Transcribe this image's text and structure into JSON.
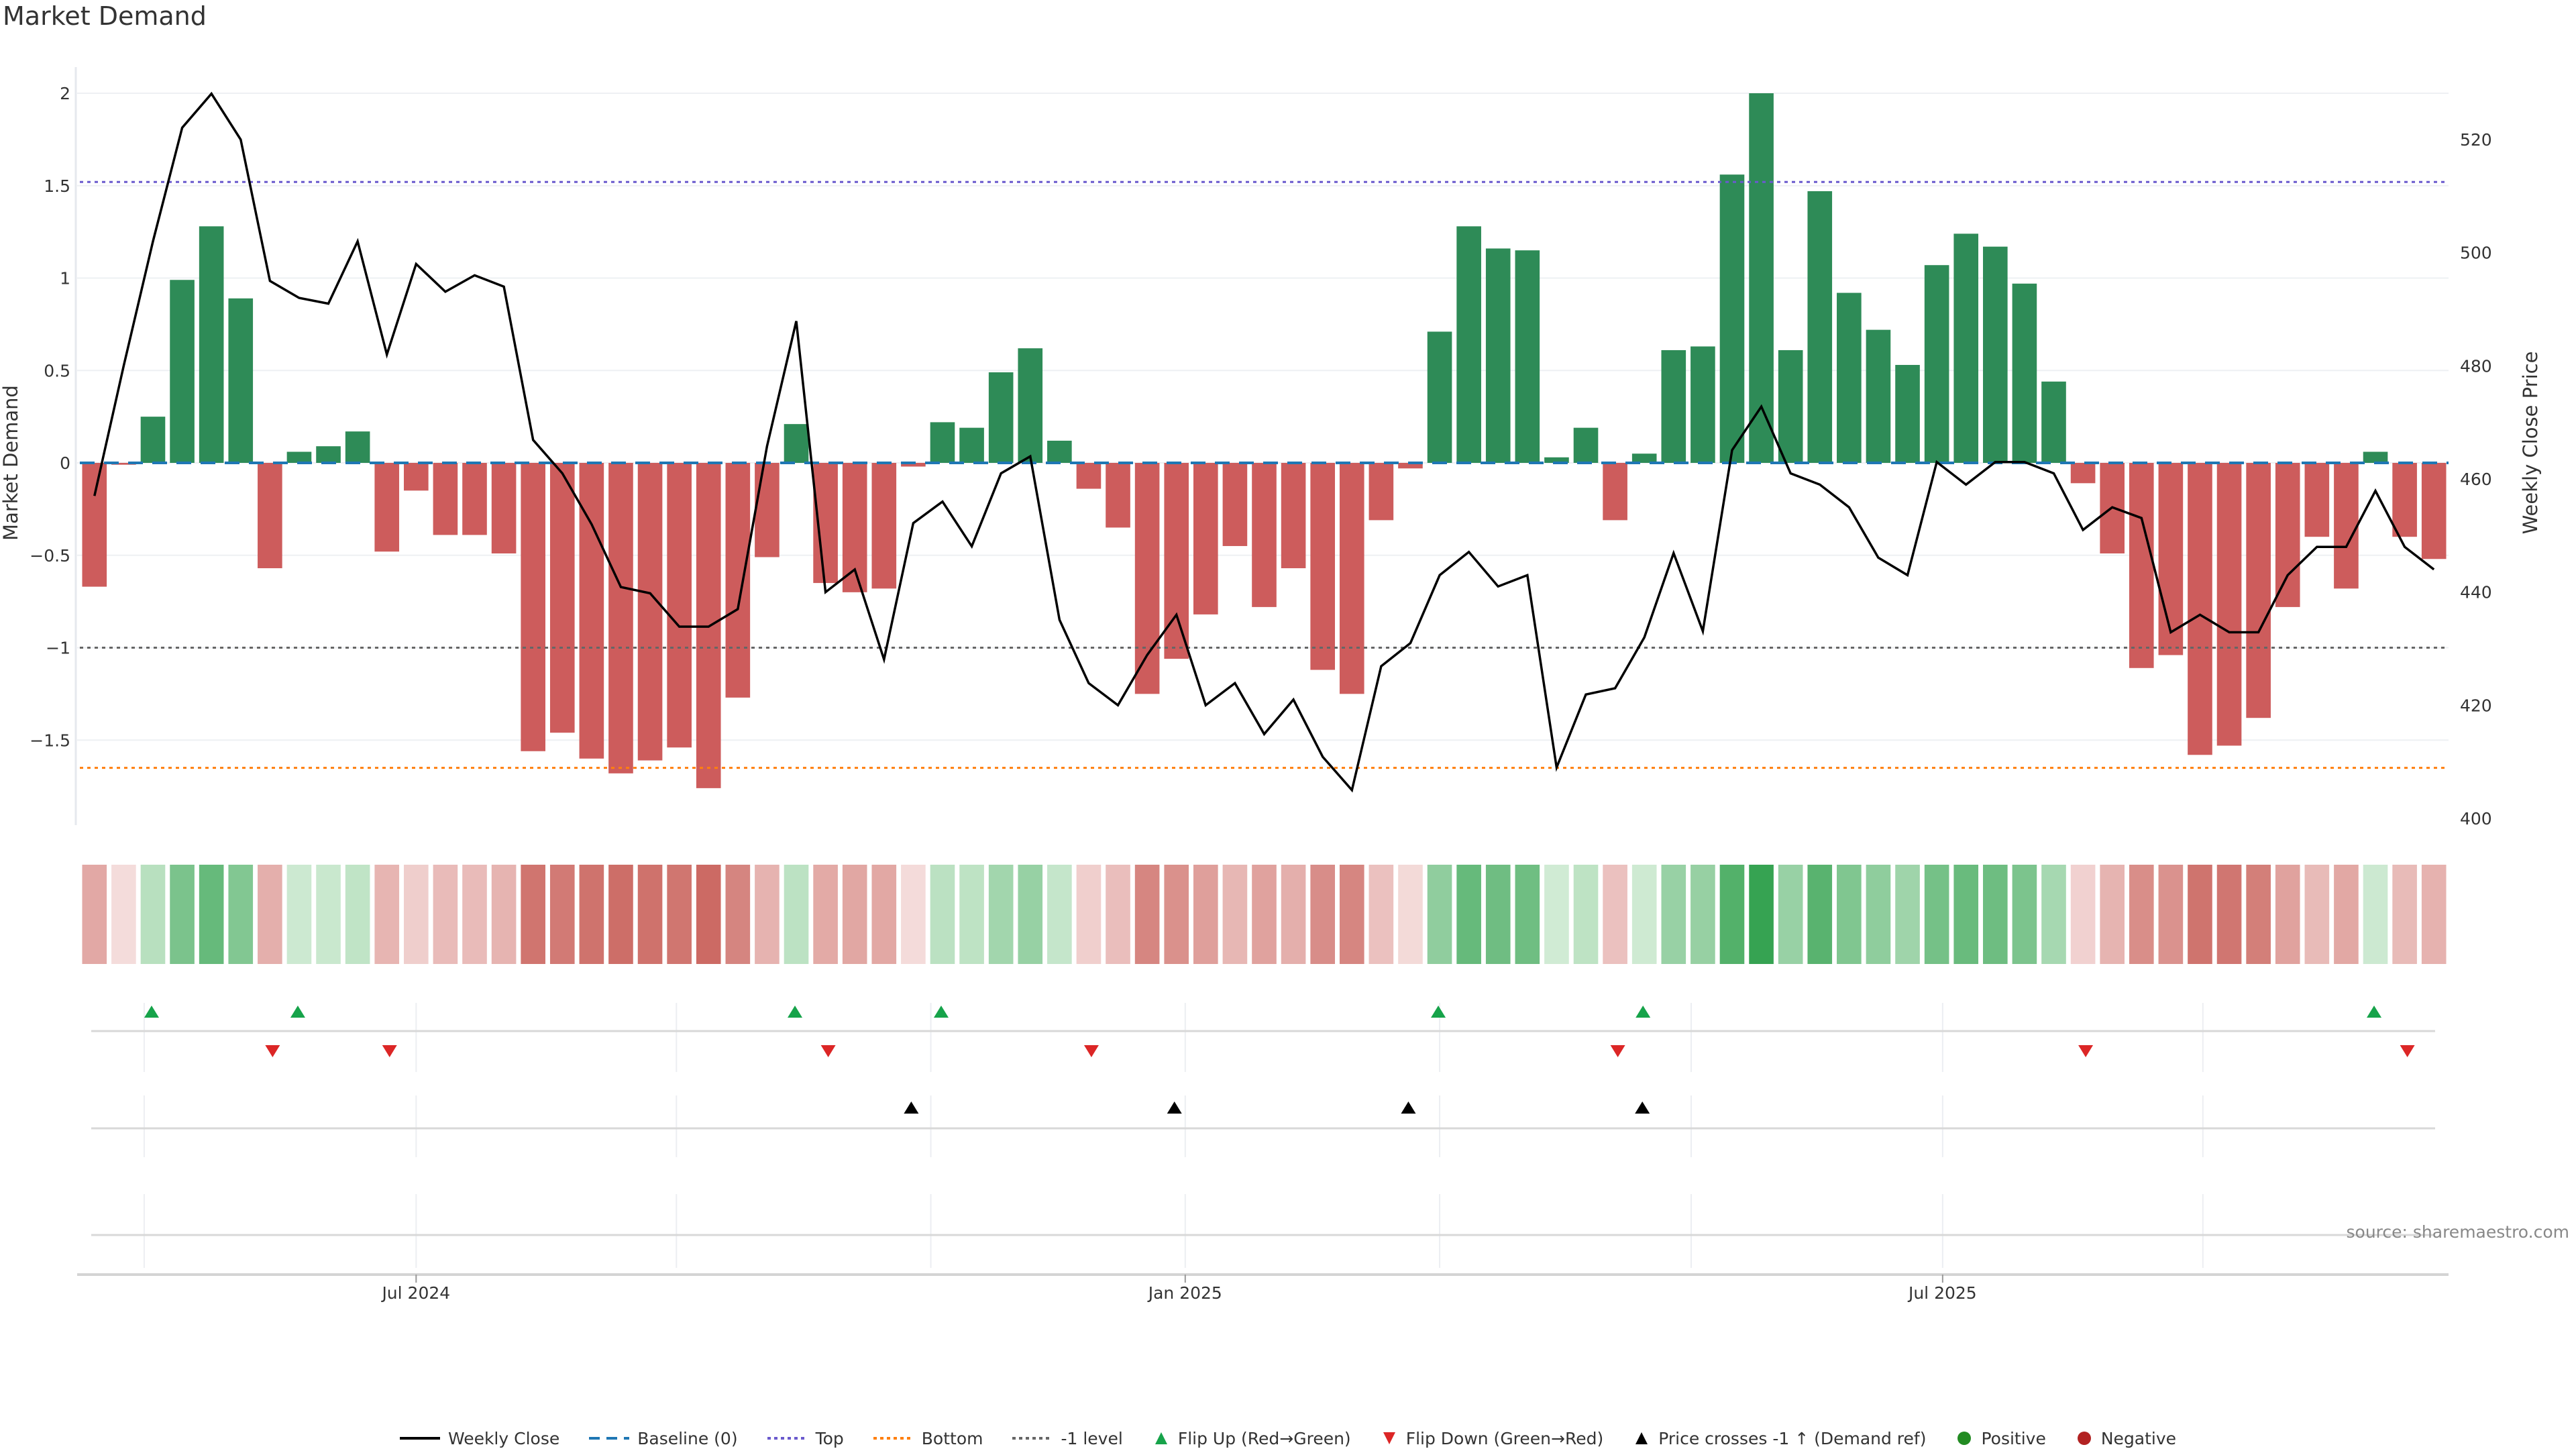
{
  "title": "Market Demand",
  "source": "source: sharemaestro.com",
  "colors": {
    "positive_bar": "#2e8b57",
    "negative_bar": "#cd5c5c",
    "price_line": "#000000",
    "baseline": "#1f77b4",
    "top": "#6a5acd",
    "bottom": "#ff7f0e",
    "minus_one": "#555555",
    "flip_up": "#16a34a",
    "flip_down": "#dc2626",
    "price_cross": "#000000",
    "positive_dot": "#228b22",
    "negative_dot": "#b22222"
  },
  "legend": [
    {
      "label": "Weekly Close",
      "icon": "solid-line-icon",
      "color": "#000000"
    },
    {
      "label": "Baseline (0)",
      "icon": "dashed-line-icon",
      "color": "#1f77b4"
    },
    {
      "label": "Top",
      "icon": "dotted-line-icon",
      "color": "#6a5acd"
    },
    {
      "label": "Bottom",
      "icon": "dotted-line-icon",
      "color": "#ff7f0e"
    },
    {
      "label": "-1 level",
      "icon": "dotted-line-icon",
      "color": "#666666"
    },
    {
      "label": "Flip Up (Red→Green)",
      "icon": "triangle-up-icon",
      "color": "#16a34a"
    },
    {
      "label": "Flip Down (Green→Red)",
      "icon": "triangle-down-icon",
      "color": "#dc2626"
    },
    {
      "label": "Price crosses -1 ↑ (Demand ref)",
      "icon": "triangle-up-icon",
      "color": "#000000"
    },
    {
      "label": "Positive",
      "icon": "circle-icon",
      "color": "#228b22"
    },
    {
      "label": "Negative",
      "icon": "circle-icon",
      "color": "#b22222"
    }
  ],
  "chart_data": {
    "type": "bar",
    "title": "Market Demand",
    "ylabel": "Market Demand",
    "y2label": "Weekly Close Price",
    "ylim": [
      -1.96,
      2.2
    ],
    "y2lim": [
      398,
      532
    ],
    "yticks": [
      {
        "value": 2,
        "label": "2"
      },
      {
        "value": 1.5,
        "label": "1.5"
      },
      {
        "value": 1,
        "label": "1"
      },
      {
        "value": 0.5,
        "label": "0.5"
      },
      {
        "value": 0,
        "label": "0"
      },
      {
        "value": -0.5,
        "label": "−0.5"
      },
      {
        "value": -1,
        "label": "−1"
      },
      {
        "value": -1.5,
        "label": "−1.5"
      }
    ],
    "y2ticks": [
      {
        "value": 520,
        "label": "520"
      },
      {
        "value": 500,
        "label": "500"
      },
      {
        "value": 480,
        "label": "480"
      },
      {
        "value": 460,
        "label": "460"
      },
      {
        "value": 440,
        "label": "440"
      },
      {
        "value": 420,
        "label": "420"
      },
      {
        "value": 400,
        "label": "400"
      }
    ],
    "xticks": [
      {
        "index": 11.5,
        "label": "Jul 2024"
      },
      {
        "index": 37.8,
        "label": "Jan 2025"
      },
      {
        "index": 63.7,
        "label": "Jul 2025"
      }
    ],
    "xgrid": [
      2.2,
      11.5,
      20.4,
      29.1,
      37.8,
      46.5,
      55.1,
      63.7,
      72.6
    ],
    "reference_lines": {
      "baseline": 0,
      "top": 1.52,
      "bottom": -1.65,
      "minus_one": -1
    },
    "series": [
      {
        "name": "Market Demand",
        "kind": "bar",
        "values": [
          -0.67,
          -0.01,
          0.25,
          0.99,
          1.28,
          0.89,
          -0.57,
          0.06,
          0.09,
          0.17,
          -0.48,
          -0.15,
          -0.39,
          -0.39,
          -0.49,
          -1.56,
          -1.46,
          -1.6,
          -1.68,
          -1.61,
          -1.54,
          -1.76,
          -1.27,
          -0.51,
          0.21,
          -0.65,
          -0.7,
          -0.68,
          -0.02,
          0.22,
          0.19,
          0.49,
          0.62,
          0.12,
          -0.14,
          -0.35,
          -1.25,
          -1.06,
          -0.82,
          -0.45,
          -0.78,
          -0.57,
          -1.12,
          -1.25,
          -0.31,
          -0.03,
          0.71,
          1.28,
          1.16,
          1.15,
          0.03,
          0.19,
          -0.31,
          0.05,
          0.61,
          0.63,
          1.56,
          2.0,
          0.61,
          1.47,
          0.92,
          0.72,
          0.53,
          1.07,
          1.24,
          1.17,
          0.97,
          0.44,
          -0.11,
          -0.49,
          -1.11,
          -1.04,
          -1.58,
          -1.53,
          -1.38,
          -0.78,
          -0.4,
          -0.68,
          0.06,
          -0.4,
          -0.52
        ]
      },
      {
        "name": "Weekly Close",
        "kind": "line",
        "axis": "right",
        "values": [
          457,
          480,
          502,
          522.1,
          528.1,
          520,
          495,
          492,
          491,
          502,
          482,
          498,
          493.1,
          496,
          494,
          466.9,
          461,
          452,
          440.9,
          439.8,
          433.9,
          433.9,
          437,
          465.8,
          487.9,
          440,
          444,
          428.1,
          452.2,
          456,
          448.1,
          461,
          464,
          435.1,
          423.9,
          420,
          428.9,
          436,
          420,
          423.9,
          414.9,
          421,
          410.9,
          405,
          426.9,
          431,
          443,
          447.1,
          441,
          443,
          409,
          421.9,
          423,
          432,
          446.9,
          433.1,
          465.1,
          472.8,
          461,
          459,
          455,
          446.1,
          443,
          463,
          459,
          463,
          463,
          461,
          451,
          455,
          453.1,
          432.9,
          436,
          432.9,
          432.9,
          443,
          448,
          448,
          457.9,
          448,
          444
        ]
      }
    ],
    "events": {
      "flip_up": [
        3,
        8,
        25,
        30,
        47,
        54,
        79
      ],
      "flip_down": [
        7,
        11,
        26,
        35,
        53,
        69,
        80
      ],
      "price_cross": [
        29,
        38,
        46,
        54
      ]
    }
  }
}
